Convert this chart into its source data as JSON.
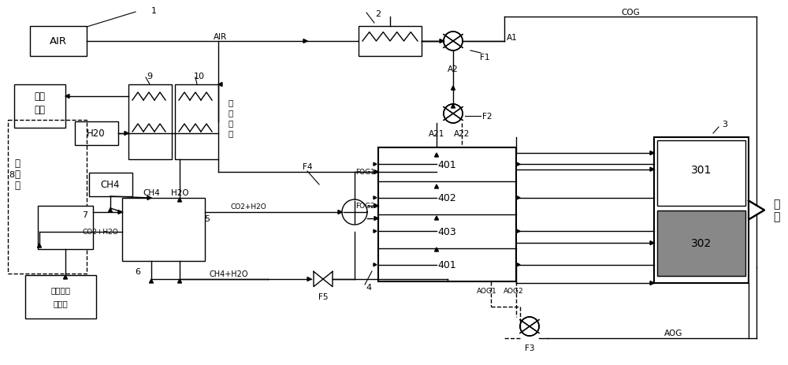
{
  "bg_color": "#ffffff",
  "lc": "#000000",
  "figsize": [
    10.0,
    4.64
  ],
  "dpi": 100,
  "xlim": [
    0,
    1000
  ],
  "ylim": [
    464,
    0
  ]
}
